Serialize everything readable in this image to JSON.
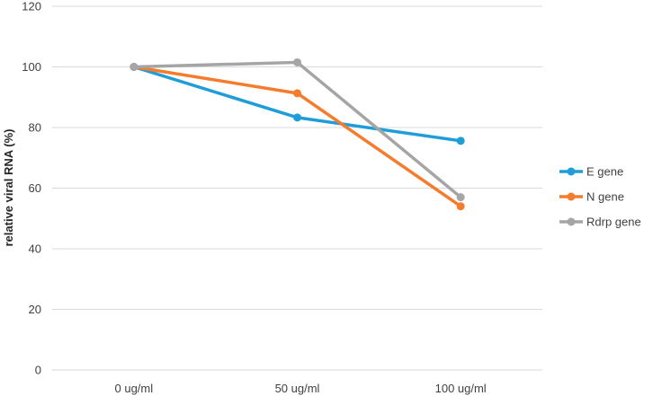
{
  "chart_data": {
    "type": "line",
    "categories": [
      "0 ug/ml",
      "50 ug/ml",
      "100 ug/ml"
    ],
    "series": [
      {
        "name": "E gene",
        "color": "#1f9dd8",
        "values": [
          100,
          83.3,
          75.6
        ]
      },
      {
        "name": "N gene",
        "color": "#f47c2c",
        "values": [
          100,
          91.3,
          54.0
        ]
      },
      {
        "name": "Rdrp gene",
        "color": "#a5a5a5",
        "values": [
          100,
          101.5,
          57.0
        ]
      }
    ],
    "title": "",
    "xlabel": "",
    "ylabel": "relative viral RNA (%)",
    "ylim": [
      0,
      120
    ],
    "yticks": [
      0,
      20,
      40,
      60,
      80,
      100,
      120
    ],
    "grid": "horizontal",
    "legend": "right"
  }
}
